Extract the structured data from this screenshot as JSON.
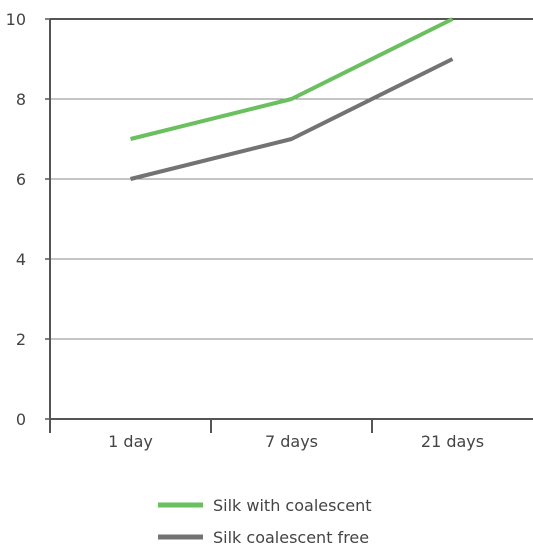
{
  "chart_data": {
    "type": "line",
    "categories": [
      "1 day",
      "7 days",
      "21 days"
    ],
    "ylim": [
      0,
      10
    ],
    "yticks": [
      0,
      2,
      4,
      6,
      8,
      10
    ],
    "grid": true,
    "legend_position": "bottom-center",
    "series": [
      {
        "name": "Silk with coalescent",
        "values": [
          7,
          8,
          10
        ],
        "color": "#6abf5e"
      },
      {
        "name": "Silk coalescent free",
        "values": [
          6,
          7,
          9
        ],
        "color": "#737373"
      }
    ]
  }
}
